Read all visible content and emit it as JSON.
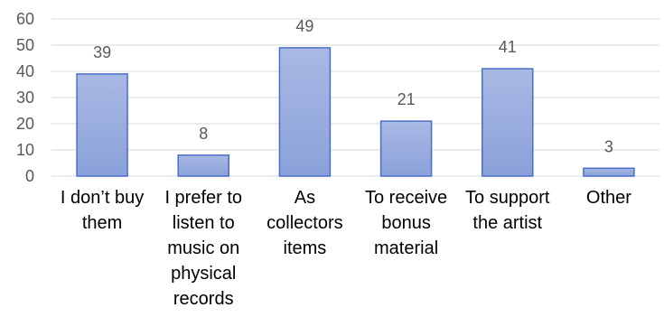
{
  "chart_data": {
    "type": "bar",
    "title": "",
    "xlabel": "",
    "ylabel": "",
    "categories": [
      "I don’t buy them",
      "I prefer to listen to music on physical records",
      "As collectors items",
      "To receive bonus material",
      "To support the artist",
      "Other"
    ],
    "values": [
      39,
      8,
      49,
      21,
      41,
      3
    ],
    "data_labels": [
      "39",
      "8",
      "49",
      "21",
      "41",
      "3"
    ],
    "ylim": [
      0,
      60
    ],
    "yticks": [
      "0",
      "10",
      "20",
      "30",
      "40",
      "50",
      "60"
    ],
    "grid": true,
    "legend": "none",
    "colors": {
      "bar_top": "#a9b9e4",
      "bar_bottom": "#8aa1d9",
      "bar_stroke": "#4a6ec8",
      "gridline": "#d9d9d9",
      "tick_text": "#595959",
      "data_label_text": "#595959",
      "category_text": "#000000"
    }
  }
}
